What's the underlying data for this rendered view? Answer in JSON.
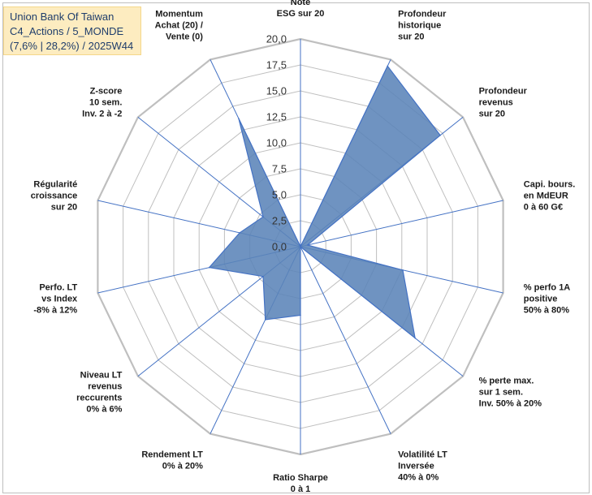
{
  "title": {
    "line1": "Union Bank Of Taiwan",
    "line2": "C4_Actions / 5_MONDE",
    "line3": "(7,6% | 28,2%) / 2025W44"
  },
  "chart_data": {
    "type": "radar",
    "axis_min": 0,
    "axis_max": 20,
    "tick_step": 2.5,
    "ticks": [
      "0,0",
      "2,5",
      "5,0",
      "7,5",
      "10,0",
      "12,5",
      "15,0",
      "17,5",
      "20,0"
    ],
    "grid": true,
    "colors": {
      "fill": "#5b84b8",
      "stroke": "#4472c4",
      "grid": "#bfbfbf",
      "axis": "#4472c4"
    },
    "axes": [
      {
        "label": [
          "Note",
          "ESG sur 20"
        ],
        "value": 0
      },
      {
        "label": [
          "Profondeur",
          "historique",
          "sur 20"
        ],
        "value": 19.3
      },
      {
        "label": [
          "Profondeur",
          "revenus",
          "sur 20"
        ],
        "value": 17.2
      },
      {
        "label": [
          "Capi. bours.",
          "en MdEUR",
          "0 à 60 G€"
        ],
        "value": 0.7
      },
      {
        "label": [
          "% perfo 1A",
          "positive",
          "50% à 80%"
        ],
        "value": 10.1
      },
      {
        "label": [
          "% perte max.",
          "sur 1 sem.",
          "Inv. 50% à 20%"
        ],
        "value": 14.1
      },
      {
        "label": [
          "Volatilité LT",
          "Inversée",
          "40% à 0%"
        ],
        "value": 0
      },
      {
        "label": [
          "Ratio Sharpe",
          "0 à 1"
        ],
        "value": 6.6
      },
      {
        "label": [
          "Rendement LT",
          "0% à 20%"
        ],
        "value": 7.8
      },
      {
        "label": [
          "Niveau LT",
          "revenus",
          "reccurents",
          "0% à 6%"
        ],
        "value": 4.6
      },
      {
        "label": [
          "Perfo. LT",
          "vs Index",
          "-8% à 12%"
        ],
        "value": 9.0
      },
      {
        "label": [
          "Régularité",
          "croissance",
          "sur 20"
        ],
        "value": 6.0
      },
      {
        "label": [
          "Z-score",
          "10 sem.",
          "Inv. 2 à -2"
        ],
        "value": 4.6
      },
      {
        "label": [
          "Momentum",
          "Achat (20) /",
          "Vente (0)"
        ],
        "value": 13.7
      }
    ]
  }
}
